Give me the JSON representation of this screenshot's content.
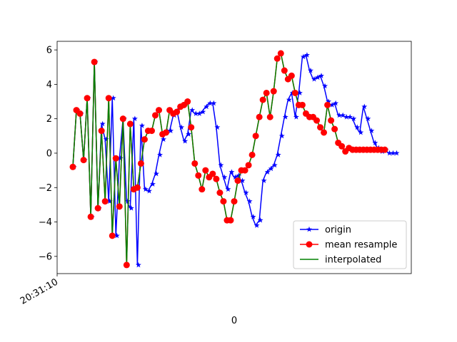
{
  "chart_data": {
    "type": "line",
    "xlabel": "0",
    "x_tick_labels": [
      "20:31:10"
    ],
    "ylim": [
      -7,
      6.5
    ],
    "y_ticks": [
      6,
      4,
      2,
      0,
      -2,
      -4,
      -6
    ],
    "y_tick_labels": [
      "6",
      "4",
      "2",
      "0",
      "−2",
      "−4",
      "−6"
    ],
    "grid": false,
    "legend": "lower right",
    "series": [
      {
        "name": "origin",
        "color": "#0000ff",
        "marker": "star",
        "x": [
          0,
          1,
          2,
          3,
          4,
          5,
          6,
          7,
          8,
          9,
          10,
          11,
          12,
          13,
          14,
          15,
          16,
          17,
          18,
          19,
          20,
          21,
          22,
          23,
          24,
          25,
          26,
          27,
          28,
          29,
          30,
          31,
          32,
          33,
          34,
          35,
          36,
          37,
          38,
          39,
          40,
          41,
          42,
          43,
          44,
          45,
          46,
          47,
          48,
          49,
          50,
          51,
          52,
          53,
          54,
          55,
          56,
          57,
          58,
          59,
          60,
          61,
          62,
          63,
          64,
          65,
          66,
          67,
          68,
          69,
          70,
          71,
          72,
          73,
          74,
          75,
          76,
          77,
          78,
          79,
          80,
          81,
          82,
          83,
          84,
          85,
          86,
          87,
          88,
          89,
          90
        ],
        "y": [
          -0.8,
          2.5,
          2.3,
          -0.4,
          3.2,
          -3.7,
          5.3,
          -3.2,
          1.7,
          0.8,
          -2.8,
          3.2,
          -4.8,
          -0.3,
          2.0,
          -2.8,
          -3.2,
          2.0,
          -6.5,
          1.6,
          -2.1,
          -2.2,
          -1.8,
          -1.2,
          -0.1,
          0.8,
          1.3,
          1.3,
          2.2,
          2.5,
          1.5,
          0.7,
          1.1,
          2.5,
          2.3,
          2.3,
          2.4,
          2.7,
          2.9,
          2.9,
          1.5,
          -0.7,
          -1.4,
          -2.1,
          -1.1,
          -1.4,
          -1.3,
          -1.6,
          -2.3,
          -2.8,
          -3.7,
          -4.2,
          -3.9,
          -1.6,
          -1.1,
          -0.9,
          -0.7,
          -0.1,
          1.0,
          2.1,
          3.1,
          3.5,
          2.1,
          3.5,
          5.6,
          5.7,
          4.8,
          4.3,
          4.4,
          4.5,
          3.9,
          3.0,
          2.8,
          2.9,
          2.2,
          2.2,
          2.1,
          2.1,
          2.0,
          1.5,
          1.2,
          2.7,
          2.0,
          1.3,
          0.6,
          0.3,
          0.1,
          0.2,
          0.0,
          0.0,
          0.0
        ]
      },
      {
        "name": "mean resample",
        "color": "#ff0000",
        "marker": "circle",
        "x": [
          0,
          1,
          2,
          3,
          4,
          5,
          6,
          7,
          8,
          9,
          10,
          11,
          12,
          13,
          14,
          15,
          16,
          17,
          18,
          19,
          20,
          21,
          22,
          23,
          24,
          25,
          26,
          27,
          28,
          29,
          30,
          31,
          32,
          33,
          34,
          35,
          36,
          37,
          38,
          39,
          40,
          41,
          42,
          43,
          44,
          45,
          46,
          47,
          48,
          49,
          50,
          51,
          52,
          53,
          54,
          55,
          56,
          57,
          58,
          59,
          60,
          61,
          62,
          63,
          64,
          65,
          66,
          67,
          68,
          69,
          70,
          71,
          72,
          73,
          74,
          75,
          76,
          77,
          78,
          79,
          80,
          81,
          82,
          83,
          84,
          85,
          86,
          87
        ],
        "y": [
          -0.8,
          2.5,
          2.3,
          -0.4,
          3.2,
          -3.7,
          5.3,
          -3.2,
          1.3,
          -2.8,
          3.2,
          -4.8,
          -0.3,
          -3.1,
          2.0,
          -6.5,
          1.7,
          -2.1,
          -2.0,
          -0.6,
          0.8,
          1.3,
          1.3,
          2.2,
          2.5,
          1.1,
          1.2,
          2.5,
          2.3,
          2.4,
          2.7,
          2.8,
          3.0,
          1.5,
          -0.6,
          -1.3,
          -2.1,
          -1.0,
          -1.4,
          -1.2,
          -1.5,
          -2.3,
          -2.8,
          -3.9,
          -3.9,
          -2.8,
          -1.6,
          -1.0,
          -1.0,
          -0.7,
          -0.1,
          1.0,
          2.1,
          3.1,
          3.5,
          2.1,
          3.6,
          5.5,
          5.8,
          4.8,
          4.3,
          4.5,
          3.5,
          2.8,
          2.8,
          2.3,
          2.1,
          2.1,
          1.9,
          1.5,
          1.2,
          2.8,
          1.9,
          1.4,
          0.6,
          0.4,
          0.1,
          0.3,
          0.2,
          0.2,
          0.2,
          0.2,
          0.2,
          0.2,
          0.2,
          0.2,
          0.2,
          0.2
        ]
      },
      {
        "name": "interpolated",
        "color": "#008000",
        "marker": "none"
      }
    ]
  }
}
